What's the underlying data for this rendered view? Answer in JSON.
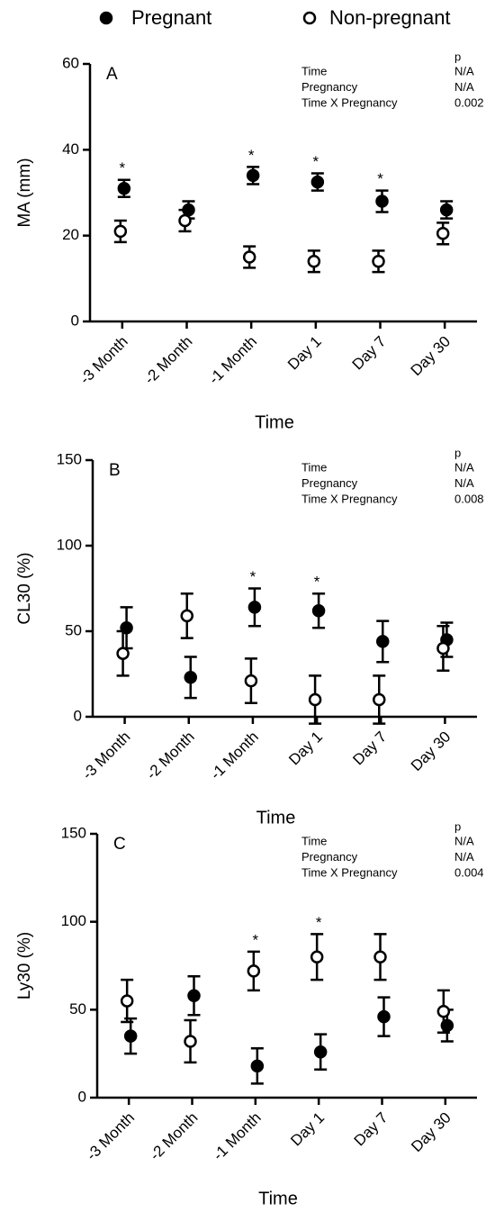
{
  "chart_data": [
    {
      "type": "errorbar",
      "panel": "A",
      "ylabel": "MA (mm)",
      "xlabel": "Time",
      "categories": [
        "-3 Month",
        "-2 Month",
        "-1 Month",
        "Day 1",
        "Day 7",
        "Day 30"
      ],
      "series": [
        {
          "name": "Pregnant",
          "color": "#000000",
          "values": [
            31,
            26,
            34,
            32.5,
            28,
            26
          ],
          "errors": [
            2,
            2,
            2,
            2,
            2.5,
            2
          ]
        },
        {
          "name": "Non-pregnant",
          "color": "#ffffff",
          "values": [
            21,
            23.5,
            15,
            14,
            14,
            20.5
          ],
          "errors": [
            2.5,
            2.5,
            2.5,
            2.5,
            2.5,
            2.5
          ]
        }
      ],
      "significance": [
        "*",
        null,
        "*",
        "*",
        "*",
        null
      ],
      "stats": {
        "header": "p",
        "rows": [
          [
            "Time",
            "N/A"
          ],
          [
            "Pregnancy",
            "N/A"
          ],
          [
            "Time X Pregnancy",
            "0.002"
          ]
        ]
      },
      "ylim": [
        0,
        60
      ],
      "yticks": [
        0,
        20,
        40,
        60
      ]
    },
    {
      "type": "errorbar",
      "panel": "B",
      "ylabel": "CL30 (%)",
      "xlabel": "Time",
      "categories": [
        "-3 Month",
        "-2 Month",
        "-1 Month",
        "Day 1",
        "Day 7",
        "Day 30"
      ],
      "series": [
        {
          "name": "Pregnant",
          "color": "#000000",
          "values": [
            52,
            23,
            64,
            62,
            44,
            45
          ],
          "errors": [
            12,
            12,
            11,
            10,
            12,
            10
          ]
        },
        {
          "name": "Non-pregnant",
          "color": "#ffffff",
          "values": [
            37,
            59,
            21,
            10,
            10,
            40
          ],
          "errors": [
            13,
            13,
            13,
            14,
            14,
            13
          ]
        }
      ],
      "significance": [
        null,
        null,
        "*",
        "*",
        null,
        null
      ],
      "stats": {
        "header": "p",
        "rows": [
          [
            "Time",
            "N/A"
          ],
          [
            "Pregnancy",
            "N/A"
          ],
          [
            "Time X Pregnancy",
            "0.008"
          ]
        ]
      },
      "ylim": [
        0,
        150
      ],
      "yticks": [
        0,
        50,
        100,
        150
      ]
    },
    {
      "type": "errorbar",
      "panel": "C",
      "ylabel": "Ly30 (%)",
      "xlabel": "Time",
      "categories": [
        "-3 Month",
        "-2 Month",
        "-1 Month",
        "Day 1",
        "Day 7",
        "Day 30"
      ],
      "series": [
        {
          "name": "Pregnant",
          "color": "#000000",
          "values": [
            35,
            58,
            18,
            26,
            46,
            41
          ],
          "errors": [
            10,
            11,
            10,
            10,
            11,
            9
          ]
        },
        {
          "name": "Non-pregnant",
          "color": "#ffffff",
          "values": [
            55,
            32,
            72,
            80,
            80,
            49
          ],
          "errors": [
            12,
            12,
            11,
            13,
            13,
            12
          ]
        }
      ],
      "significance": [
        null,
        null,
        "*",
        "*",
        null,
        null
      ],
      "stats": {
        "header": "p",
        "rows": [
          [
            "Time",
            "N/A"
          ],
          [
            "Pregnancy",
            "N/A"
          ],
          [
            "Time X Pregnancy",
            "0.004"
          ]
        ]
      },
      "ylim": [
        0,
        150
      ],
      "yticks": [
        0,
        50,
        100,
        150
      ]
    }
  ]
}
